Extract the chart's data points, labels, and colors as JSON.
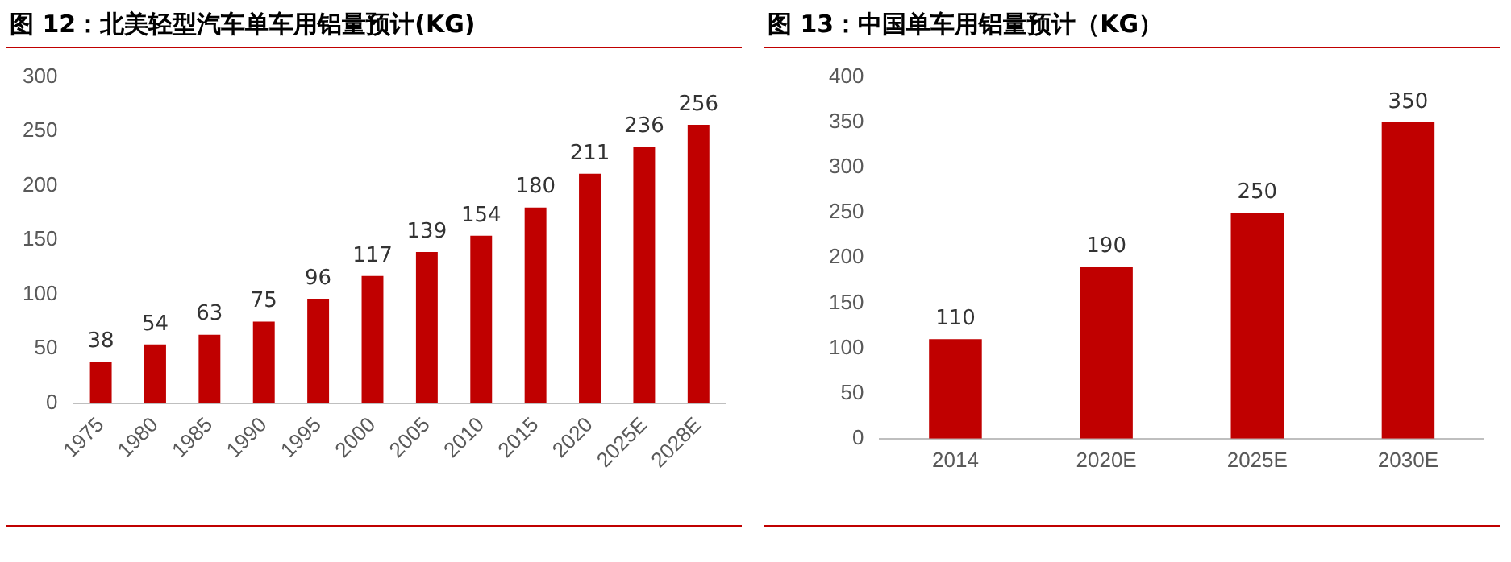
{
  "chart_data": [
    {
      "type": "bar",
      "title": "图 12：北美轻型汽车单车用铝量预计(KG)",
      "categories": [
        "1975",
        "1980",
        "1985",
        "1990",
        "1995",
        "2000",
        "2005",
        "2010",
        "2015",
        "2020",
        "2025E",
        "2028E"
      ],
      "values": [
        38,
        54,
        63,
        75,
        96,
        117,
        139,
        154,
        180,
        211,
        236,
        256
      ],
      "color": "#c00000",
      "ylim": [
        0,
        300
      ],
      "yticks": [
        0,
        50,
        100,
        150,
        200,
        250,
        300
      ],
      "data_labels": true,
      "grid": false,
      "legend": false
    },
    {
      "type": "bar",
      "title": "图 13：中国单车用铝量预计（KG）",
      "categories": [
        "2014",
        "2020E",
        "2025E",
        "2030E"
      ],
      "values": [
        110,
        190,
        250,
        350
      ],
      "color": "#c00000",
      "ylim": [
        0,
        400
      ],
      "yticks": [
        0,
        50,
        100,
        150,
        200,
        250,
        300,
        350,
        400
      ],
      "data_labels": true,
      "grid": false,
      "legend": false
    }
  ]
}
